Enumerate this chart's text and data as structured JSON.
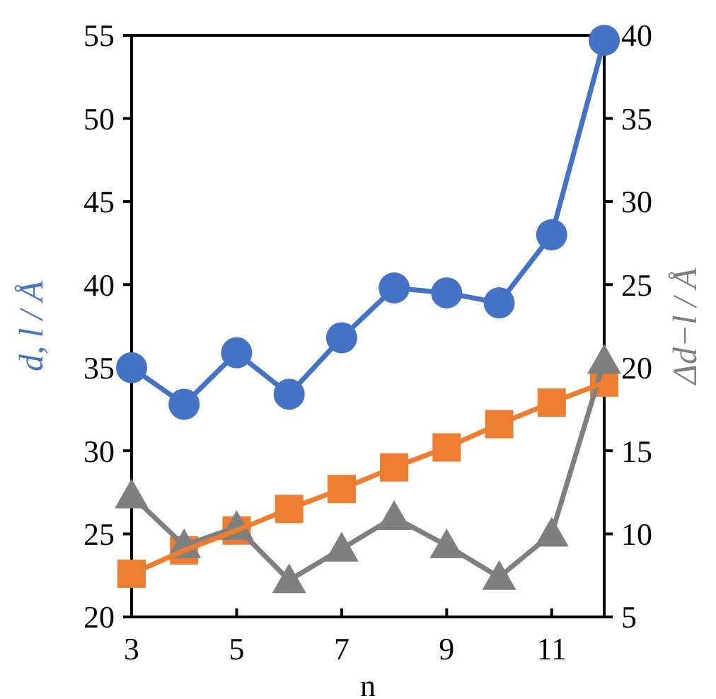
{
  "chart_data": {
    "type": "line",
    "xlabel": "n",
    "ylabel": "d, l / Å",
    "y2label": "Δd−l / Å",
    "x": [
      3,
      4,
      5,
      6,
      7,
      8,
      9,
      10,
      11,
      12
    ],
    "xlim": [
      3,
      12
    ],
    "xticks": [
      3,
      5,
      7,
      9,
      11
    ],
    "ylim": [
      20,
      55
    ],
    "yticks": [
      20,
      25,
      30,
      35,
      40,
      45,
      50,
      55
    ],
    "y2lim": [
      5,
      40
    ],
    "y2ticks": [
      5,
      10,
      15,
      20,
      25,
      30,
      35,
      40
    ],
    "grid": false,
    "series": [
      {
        "color": "#4472c4",
        "marker": "circle",
        "values": [
          35.0,
          32.8,
          35.9,
          33.4,
          36.8,
          39.8,
          39.5,
          38.9,
          43.0,
          54.7
        ]
      },
      {
        "color": "#ed7d31",
        "marker": "square",
        "values": [
          22.6,
          24.0,
          25.2,
          26.5,
          27.7,
          29.0,
          30.2,
          31.6,
          32.9,
          34.1
        ]
      },
      {
        "color": "#7f7f7f",
        "marker": "triangle",
        "axis": "y2",
        "values": [
          12.3,
          9.3,
          10.4,
          7.2,
          9.1,
          11.0,
          9.3,
          7.4,
          10.0,
          20.4
        ]
      }
    ]
  }
}
